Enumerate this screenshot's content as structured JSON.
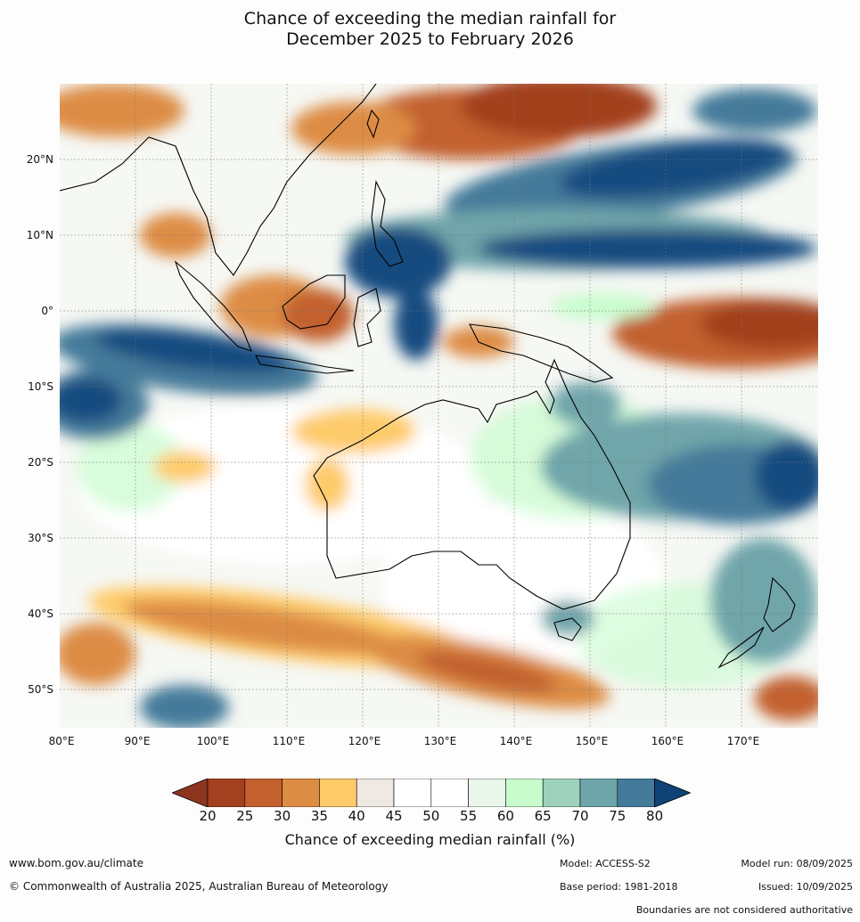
{
  "title_line1": "Chance of exceeding the median rainfall for",
  "title_line2": "December 2025 to February 2026",
  "lat_labels": [
    "20°N",
    "10°N",
    "0°",
    "10°S",
    "20°S",
    "30°S",
    "40°S",
    "50°S"
  ],
  "lon_labels": [
    "80°E",
    "90°E",
    "100°E",
    "110°E",
    "120°E",
    "130°E",
    "140°E",
    "150°E",
    "160°E",
    "170°E"
  ],
  "colorbar": {
    "ticks": [
      "20",
      "25",
      "30",
      "35",
      "40",
      "45",
      "50",
      "55",
      "60",
      "65",
      "70",
      "75",
      "80"
    ],
    "colors": [
      "#a3401f",
      "#c2612e",
      "#dd8c44",
      "#fecb6a",
      "#efe9e4",
      "#ffffff",
      "#ffffff",
      "#e9f6e9",
      "#c8fccd",
      "#9dd1bb",
      "#6fa5aa",
      "#447a9a",
      "#124c80"
    ],
    "low_extend_color": "#8e3520",
    "high_extend_color": "#0f4377",
    "label": "Chance of exceeding median rainfall (%)"
  },
  "footer": {
    "website": "www.bom.gov.au/climate",
    "copyright": "© Commonwealth of Australia 2025, Australian Bureau of Meteorology",
    "model": "Model: ACCESS-S2",
    "base_period": "Base period: 1981-2018",
    "model_run": "Model run: 08/09/2025",
    "issued": "Issued: 10/09/2025",
    "disclaimer": "Boundaries are not considered authoritative"
  }
}
